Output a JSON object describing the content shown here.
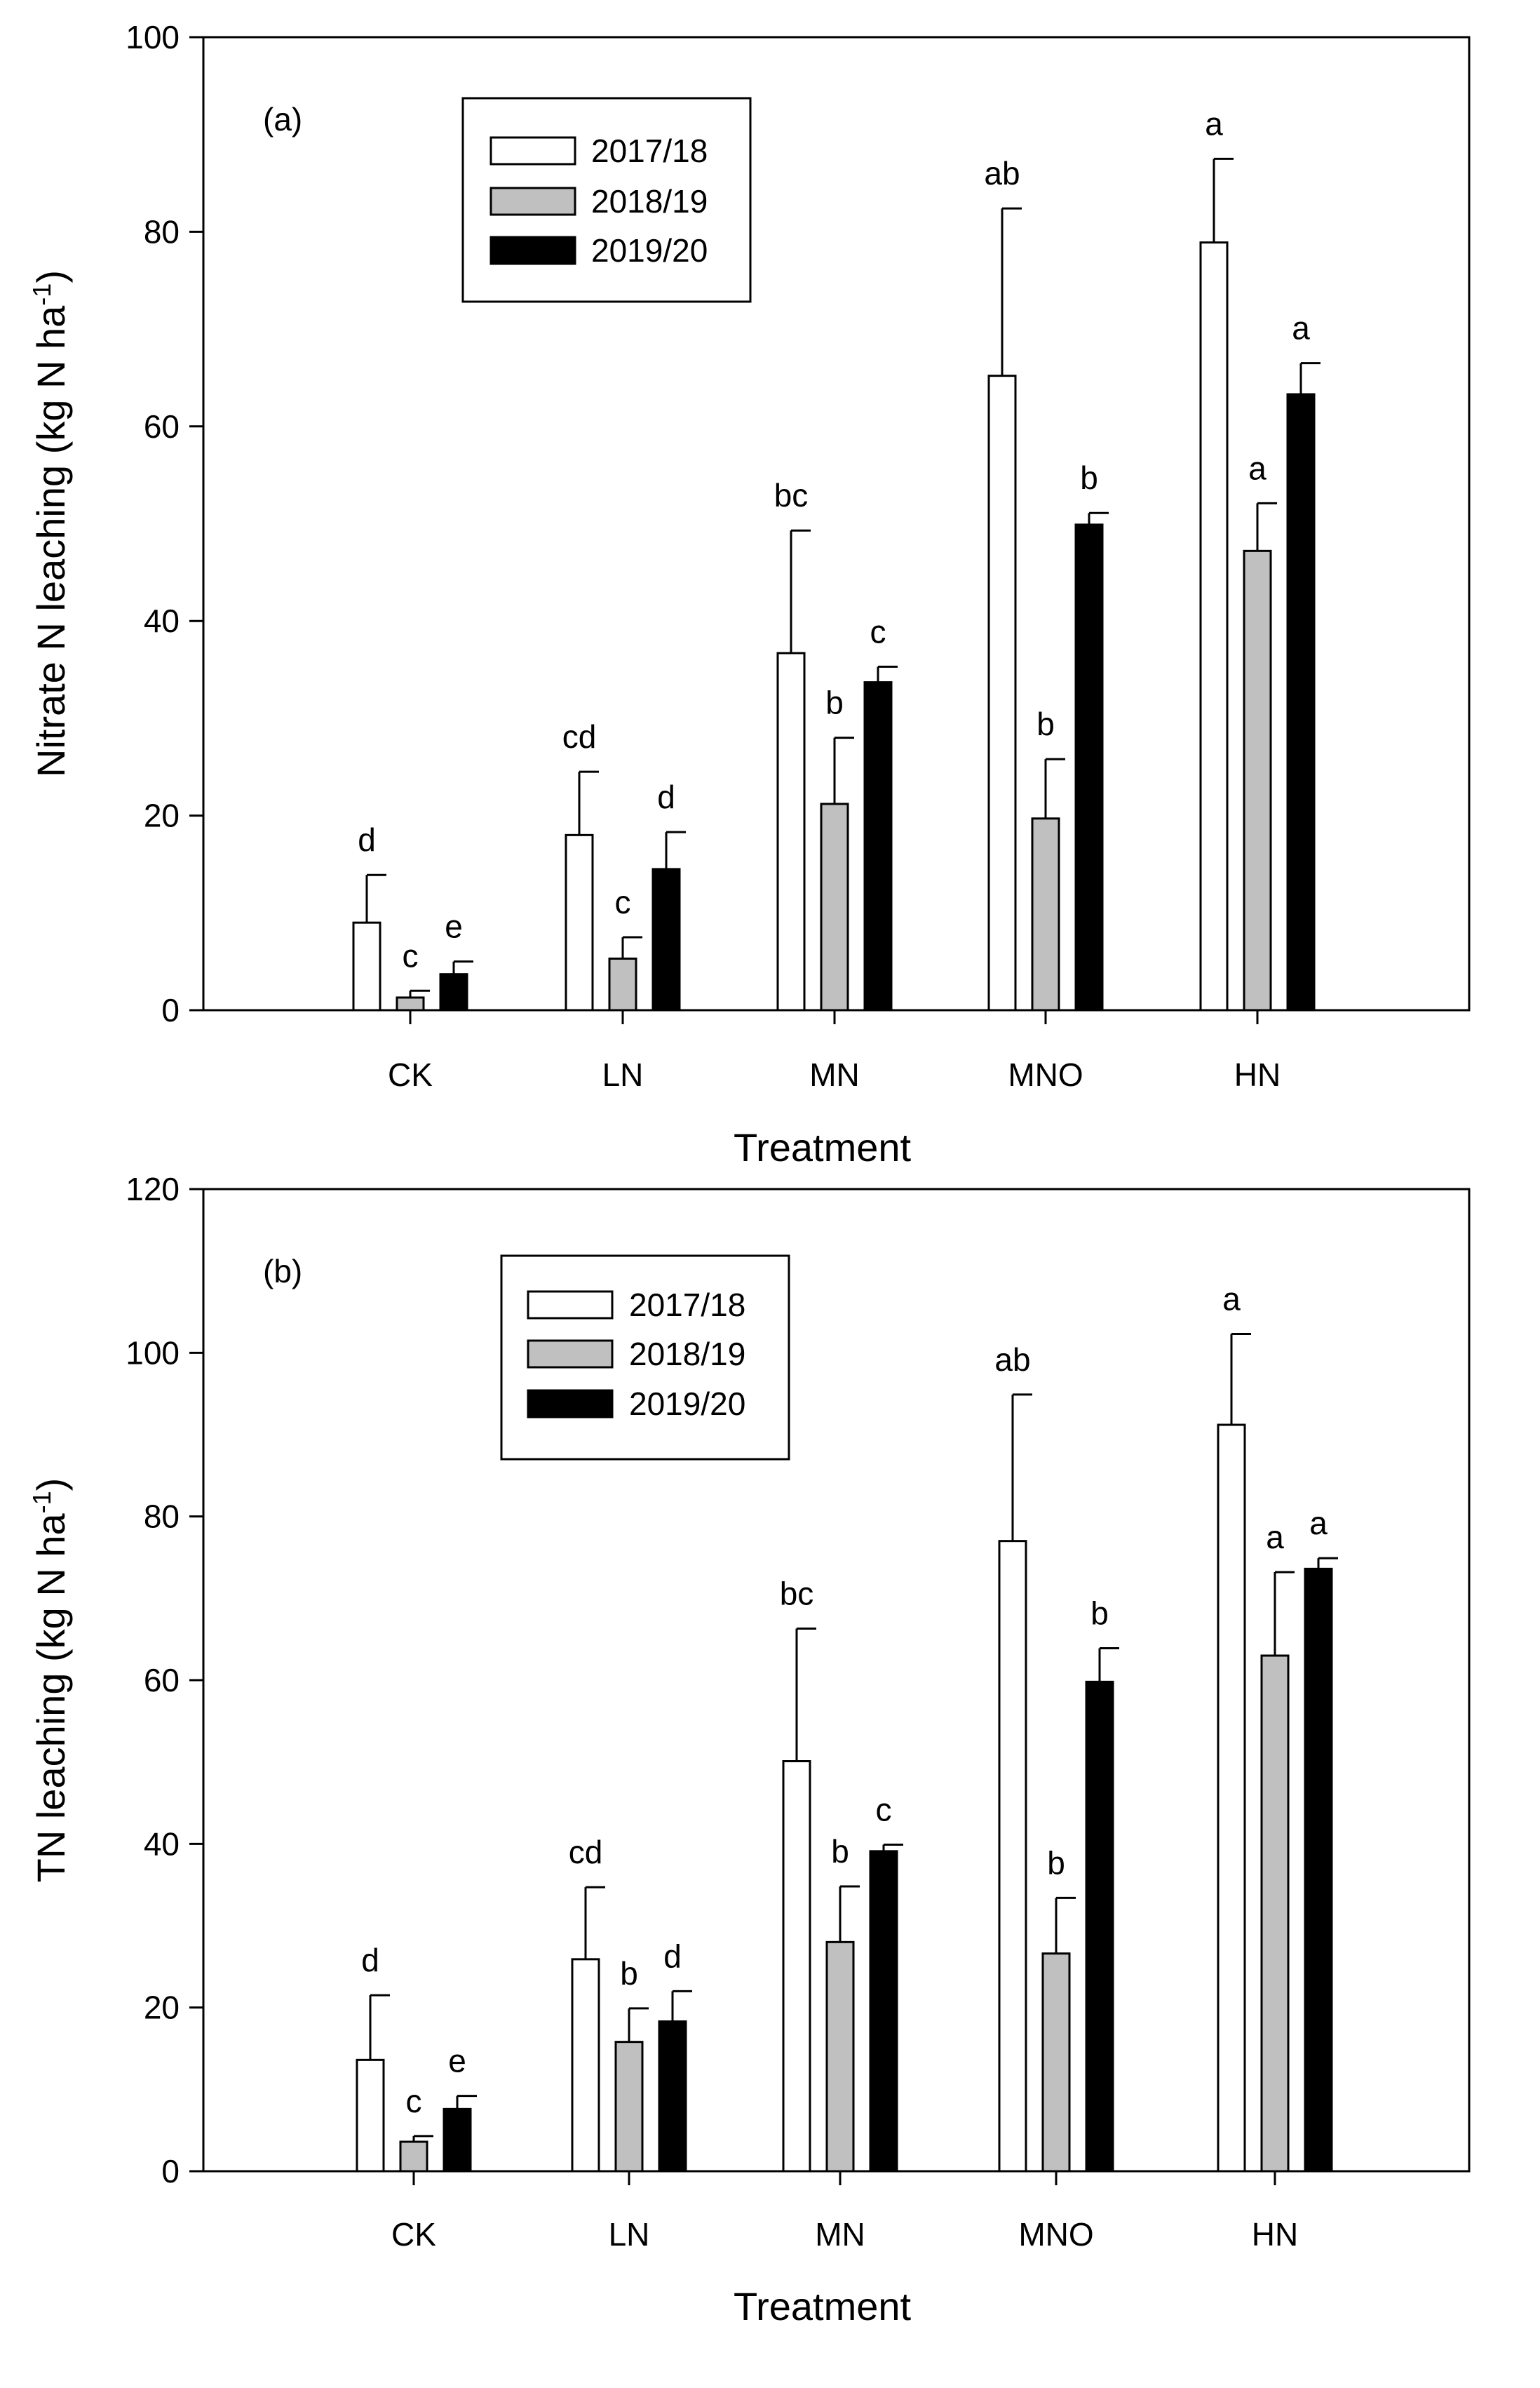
{
  "chart_data": [
    {
      "type": "bar",
      "panel_label": "(a)",
      "categories": [
        "CK",
        "LN",
        "MN",
        "MNO",
        "HN"
      ],
      "xlabel": "Treatment",
      "ylabel": "Nitrate N leaching (kg N ha",
      "ylabel_sup": "-1",
      "ylabel_close": ")",
      "ylim": [
        0,
        100
      ],
      "yticks": [
        0,
        20,
        40,
        60,
        80,
        100
      ],
      "legend_position": "top-left",
      "series": [
        {
          "name": "2017/18",
          "color": "#ffffff",
          "values": [
            9.0,
            18.0,
            36.7,
            65.2,
            78.9
          ],
          "errors": [
            4.9,
            6.5,
            12.6,
            17.2,
            8.6
          ],
          "letters": [
            "d",
            "cd",
            "bc",
            "ab",
            "a"
          ]
        },
        {
          "name": "2018/19",
          "color": "#c0c0c0",
          "values": [
            1.3,
            5.3,
            21.2,
            19.7,
            47.2
          ],
          "errors": [
            0.7,
            2.2,
            6.8,
            6.1,
            4.9
          ],
          "letters": [
            "c",
            "c",
            "b",
            "b",
            "a"
          ]
        },
        {
          "name": "2019/20",
          "color": "#000000",
          "values": [
            3.7,
            14.5,
            33.7,
            49.9,
            63.3
          ],
          "errors": [
            1.3,
            3.8,
            1.6,
            1.2,
            3.2
          ],
          "letters": [
            "e",
            "d",
            "c",
            "b",
            "a"
          ]
        }
      ]
    },
    {
      "type": "bar",
      "panel_label": "(b)",
      "categories": [
        "CK",
        "LN",
        "MN",
        "MNO",
        "HN"
      ],
      "xlabel": "Treatment",
      "ylabel": "TN leaching (kg N ha",
      "ylabel_sup": "-1",
      "ylabel_close": ")",
      "ylim": [
        0,
        120
      ],
      "yticks": [
        0,
        20,
        40,
        60,
        80,
        100,
        120
      ],
      "legend_position": "top-left",
      "series": [
        {
          "name": "2017/18",
          "color": "#ffffff",
          "values": [
            13.6,
            25.9,
            50.1,
            77.0,
            91.2
          ],
          "errors": [
            7.9,
            8.8,
            16.2,
            17.9,
            11.1
          ],
          "letters": [
            "d",
            "cd",
            "bc",
            "ab",
            "a"
          ]
        },
        {
          "name": "2018/19",
          "color": "#c0c0c0",
          "values": [
            3.6,
            15.8,
            28.0,
            26.6,
            63.0
          ],
          "errors": [
            0.7,
            4.1,
            6.8,
            6.8,
            10.2
          ],
          "letters": [
            "c",
            "b",
            "b",
            "b",
            "a"
          ]
        },
        {
          "name": "2019/20",
          "color": "#000000",
          "values": [
            7.6,
            18.3,
            39.1,
            59.8,
            73.6
          ],
          "errors": [
            1.6,
            3.7,
            0.8,
            4.1,
            1.3
          ],
          "letters": [
            "e",
            "d",
            "c",
            "b",
            "a"
          ]
        }
      ]
    }
  ]
}
